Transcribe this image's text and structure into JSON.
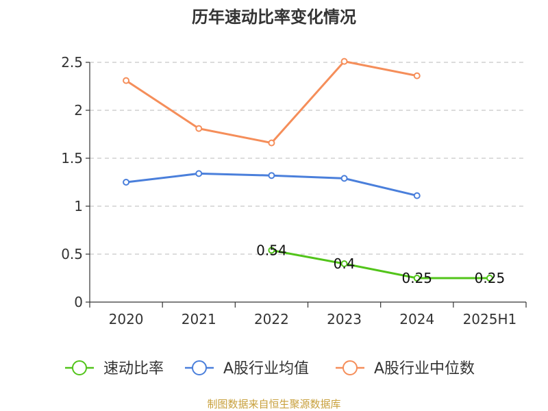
{
  "source_text": "制图数据来自恒生聚源数据库",
  "source_color": "#c8a03c",
  "chart_data": {
    "type": "line",
    "title": "历年速动比率变化情况",
    "xlabel": "",
    "ylabel": "",
    "categories": [
      "2020",
      "2021",
      "2022",
      "2023",
      "2024",
      "2025H1"
    ],
    "y_ticks": [
      "0",
      "0.5",
      "1",
      "1.5",
      "2",
      "2.5"
    ],
    "ylim": [
      0,
      2.5
    ],
    "grid": true,
    "legend_position": "bottom",
    "series": [
      {
        "name": "速动比率",
        "color": "#52c41a",
        "values": [
          null,
          null,
          0.54,
          0.4,
          0.25,
          0.25
        ],
        "labels": [
          "",
          "",
          "0.54",
          "0.4",
          "0.25",
          "0.25"
        ]
      },
      {
        "name": "A股行业均值",
        "color": "#4a7fdb",
        "values": [
          1.25,
          1.34,
          1.32,
          1.29,
          1.11,
          null
        ],
        "labels": [
          "",
          "",
          "",
          "",
          "",
          ""
        ]
      },
      {
        "name": "A股行业中位数",
        "color": "#f58e5a",
        "values": [
          2.31,
          1.81,
          1.66,
          2.51,
          2.36,
          null
        ],
        "labels": [
          "",
          "",
          "",
          "",
          "",
          ""
        ]
      }
    ]
  }
}
